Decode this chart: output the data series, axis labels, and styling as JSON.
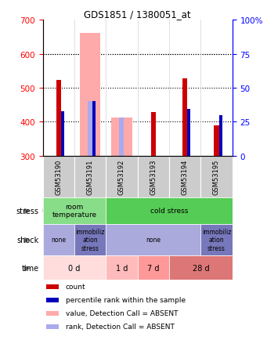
{
  "title": "GDS1851 / 1380051_at",
  "samples": [
    "GSM53190",
    "GSM53191",
    "GSM53192",
    "GSM53193",
    "GSM53194",
    "GSM53195"
  ],
  "ylim": [
    300,
    700
  ],
  "ylim_right": [
    0,
    100
  ],
  "yticks_left": [
    300,
    400,
    500,
    600,
    700
  ],
  "yticks_right": [
    0,
    25,
    50,
    75,
    100
  ],
  "bar_bottom": 300,
  "count_values": [
    522,
    300,
    300,
    428,
    527,
    390
  ],
  "rank_values": [
    430,
    460,
    300,
    300,
    437,
    420
  ],
  "absent_value_bars": [
    null,
    660,
    413,
    null,
    null,
    null
  ],
  "absent_rank_bars": [
    null,
    460,
    413,
    null,
    null,
    null
  ],
  "count_color": "#cc0000",
  "rank_color": "#0000bb",
  "absent_value_color": "#ffaaaa",
  "absent_rank_color": "#aaaaee",
  "stress_items": [
    {
      "label": "room\ntemperature",
      "start": 0,
      "end": 2,
      "color": "#88dd88"
    },
    {
      "label": "cold stress",
      "start": 2,
      "end": 6,
      "color": "#55cc55"
    }
  ],
  "shock_items": [
    {
      "label": "none",
      "start": 0,
      "end": 1,
      "color": "#aaaadd"
    },
    {
      "label": "immobiliz\nation\nstress",
      "start": 1,
      "end": 2,
      "color": "#7777bb"
    },
    {
      "label": "none",
      "start": 2,
      "end": 5,
      "color": "#aaaadd"
    },
    {
      "label": "immobiliz\nation\nstress",
      "start": 5,
      "end": 6,
      "color": "#7777bb"
    }
  ],
  "time_items": [
    {
      "label": "0 d",
      "start": 0,
      "end": 2,
      "color": "#ffdddd"
    },
    {
      "label": "1 d",
      "start": 2,
      "end": 3,
      "color": "#ffbbbb"
    },
    {
      "label": "7 d",
      "start": 3,
      "end": 4,
      "color": "#ff9999"
    },
    {
      "label": "28 d",
      "start": 4,
      "end": 6,
      "color": "#dd7777"
    }
  ],
  "legend_items": [
    {
      "color": "#cc0000",
      "label": "count"
    },
    {
      "color": "#0000bb",
      "label": "percentile rank within the sample"
    },
    {
      "color": "#ffaaaa",
      "label": "value, Detection Call = ABSENT"
    },
    {
      "color": "#aaaaee",
      "label": "rank, Detection Call = ABSENT"
    }
  ]
}
